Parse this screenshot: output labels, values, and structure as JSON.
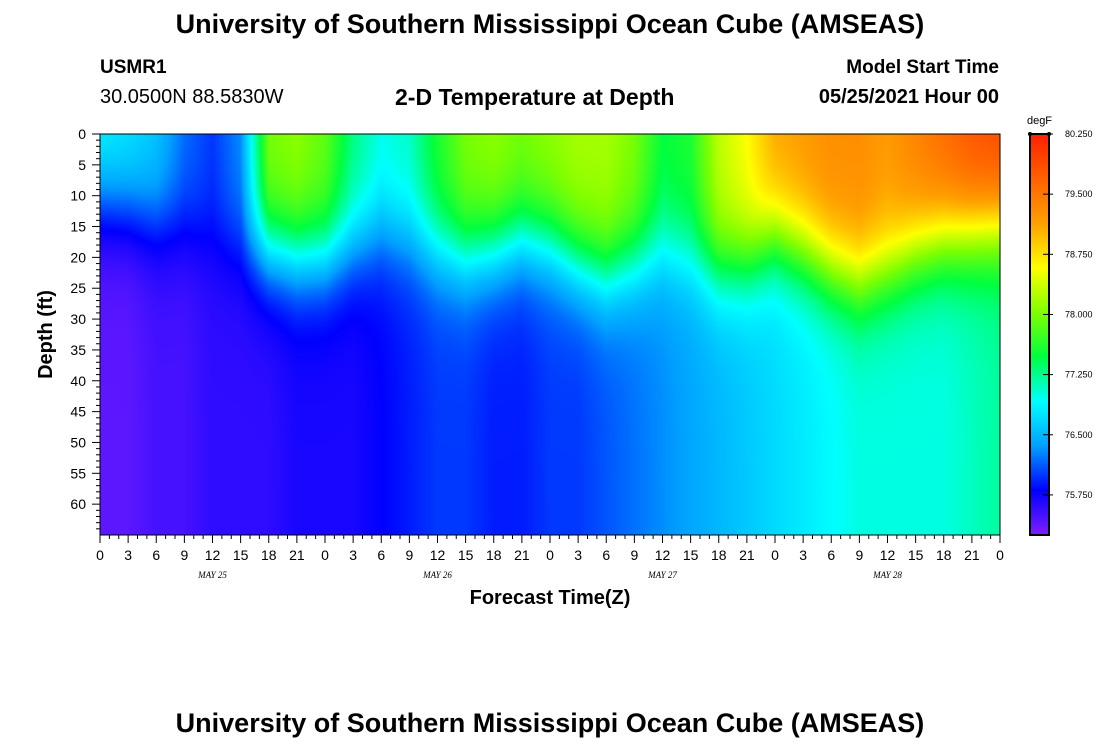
{
  "header": {
    "title": "University of Southern Mississippi Ocean Cube (AMSEAS)",
    "station_id": "USMR1",
    "coords": "30.0500N  88.5830W",
    "plot_title": "2-D Temperature at Depth",
    "start_label": "Model Start Time",
    "start_value": "05/25/2021 Hour 00"
  },
  "footer": {
    "title": "University of Southern Mississippi Ocean Cube (AMSEAS)"
  },
  "colors": {
    "background": "#ffffff",
    "text": "#000000"
  },
  "chart_data": {
    "type": "heatmap",
    "title": "2-D Temperature at Depth",
    "xlabel": "Forecast Time(Z)",
    "ylabel": "Depth (ft)",
    "x_unit": "forecast hour",
    "xlim": [
      0,
      96
    ],
    "ylim": [
      65,
      0
    ],
    "x_tick_labels": [
      "0",
      "3",
      "6",
      "9",
      "12",
      "15",
      "18",
      "21",
      "0",
      "3",
      "6",
      "9",
      "12",
      "15",
      "18",
      "21",
      "0",
      "3",
      "6",
      "9",
      "12",
      "15",
      "18",
      "21",
      "0",
      "3",
      "6",
      "9",
      "12",
      "15",
      "18",
      "21",
      "0"
    ],
    "y_ticks": [
      0,
      5,
      10,
      15,
      20,
      25,
      30,
      35,
      40,
      45,
      50,
      55,
      60
    ],
    "day_labels": [
      {
        "label": "MAY 25",
        "hour": 12
      },
      {
        "label": "MAY 26",
        "hour": 36
      },
      {
        "label": "MAY 27",
        "hour": 60
      },
      {
        "label": "MAY 28",
        "hour": 84
      }
    ],
    "colorbar": {
      "unit": "degF",
      "min": 75.25,
      "max": 80.25,
      "tick_labels": [
        "80.250",
        "79.500",
        "78.750",
        "78.000",
        "77.250",
        "76.500",
        "75.750"
      ],
      "tick_values": [
        80.25,
        79.5,
        78.75,
        78.0,
        77.25,
        76.5,
        75.75
      ],
      "colors": [
        "#7f1fff",
        "#0000ff",
        "#00a0ff",
        "#00ffff",
        "#00ff40",
        "#80ff00",
        "#ffff00",
        "#ffa000",
        "#ff6000",
        "#ff2000"
      ]
    },
    "thermocline_depth_ft": {
      "hours": [
        0,
        3,
        6,
        9,
        12,
        15,
        18,
        21,
        24,
        27,
        30,
        33,
        36,
        39,
        42,
        45,
        48,
        51,
        54,
        57,
        60,
        63,
        66,
        69,
        72,
        75,
        78,
        81,
        84,
        87,
        90,
        93,
        96
      ],
      "values": [
        11,
        12,
        14,
        15,
        17,
        18,
        19,
        20,
        20,
        18,
        16,
        17,
        19,
        20,
        19,
        17,
        18,
        21,
        23,
        21,
        19,
        20,
        22,
        21,
        17,
        19,
        22,
        24,
        22,
        19,
        17,
        16,
        15
      ]
    },
    "surface_temp_f": {
      "hours": [
        0,
        3,
        6,
        9,
        12,
        15,
        18,
        21,
        24,
        27,
        30,
        33,
        36,
        39,
        42,
        45,
        48,
        51,
        54,
        57,
        60,
        63,
        66,
        69,
        72,
        75,
        78,
        81,
        84,
        87,
        90,
        93,
        96
      ],
      "values": [
        76.9,
        76.8,
        76.6,
        76.2,
        76.0,
        76.3,
        78.0,
        78.1,
        77.9,
        77.3,
        77.0,
        77.1,
        77.6,
        78.0,
        78.1,
        78.0,
        78.1,
        78.2,
        78.2,
        78.0,
        77.5,
        77.6,
        78.3,
        78.6,
        79.1,
        79.2,
        79.3,
        79.3,
        79.2,
        79.4,
        79.6,
        79.8,
        79.9
      ]
    },
    "bottom_temp_f": {
      "hours": [
        0,
        3,
        6,
        9,
        12,
        15,
        18,
        21,
        24,
        27,
        30,
        33,
        36,
        39,
        42,
        45,
        48,
        51,
        54,
        57,
        60,
        63,
        66,
        69,
        72,
        75,
        78,
        81,
        84,
        87,
        90,
        93,
        96
      ],
      "values": [
        75.4,
        75.4,
        75.5,
        75.5,
        75.6,
        75.6,
        75.6,
        75.7,
        75.7,
        75.7,
        75.8,
        75.9,
        76.0,
        76.0,
        75.9,
        75.9,
        76.0,
        76.0,
        76.1,
        76.2,
        76.3,
        76.4,
        76.5,
        76.6,
        76.7,
        76.8,
        76.9,
        77.0,
        77.0,
        77.0,
        77.0,
        77.1,
        77.2
      ]
    }
  }
}
